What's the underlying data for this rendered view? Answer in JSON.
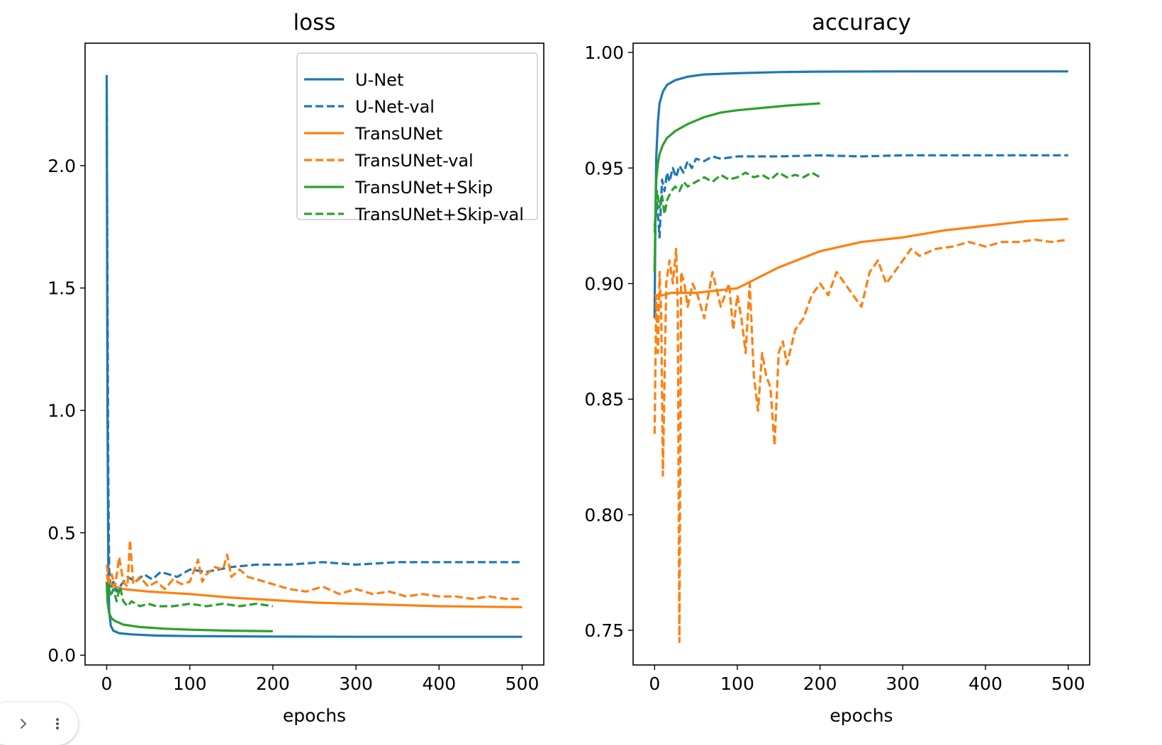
{
  "chart_data": [
    {
      "type": "line",
      "title": "loss",
      "xlabel": "epochs",
      "ylabel": "",
      "xlim": [
        -26,
        526
      ],
      "ylim": [
        -0.04,
        2.5
      ],
      "xticks": [
        0,
        100,
        200,
        300,
        400,
        500
      ],
      "xtick_labels": [
        "0",
        "100",
        "200",
        "300",
        "400",
        "500"
      ],
      "yticks": [
        0.0,
        0.5,
        1.0,
        1.5,
        2.0
      ],
      "ytick_labels": [
        "0.0",
        "0.5",
        "1.0",
        "1.5",
        "2.0"
      ],
      "legend": "top-right",
      "series": [
        {
          "name": "U-Net",
          "color": "#1f77b4",
          "style": "solid",
          "x": [
            0,
            1,
            2,
            3,
            5,
            8,
            15,
            30,
            60,
            100,
            200,
            300,
            400,
            500
          ],
          "y": [
            2.37,
            1.0,
            0.35,
            0.18,
            0.12,
            0.1,
            0.09,
            0.085,
            0.08,
            0.078,
            0.076,
            0.075,
            0.075,
            0.075
          ]
        },
        {
          "name": "U-Net-val",
          "color": "#1f77b4",
          "style": "dashed",
          "x": [
            0,
            1,
            2,
            3,
            5,
            8,
            12,
            18,
            25,
            35,
            45,
            55,
            65,
            75,
            85,
            100,
            120,
            150,
            180,
            220,
            260,
            300,
            350,
            400,
            450,
            500
          ],
          "y": [
            2.3,
            1.5,
            0.7,
            0.35,
            0.27,
            0.3,
            0.26,
            0.29,
            0.32,
            0.3,
            0.33,
            0.31,
            0.34,
            0.33,
            0.32,
            0.35,
            0.34,
            0.36,
            0.37,
            0.37,
            0.38,
            0.37,
            0.38,
            0.38,
            0.38,
            0.38
          ]
        },
        {
          "name": "TransUNet",
          "color": "#ff7f0e",
          "style": "solid",
          "x": [
            0,
            2,
            5,
            10,
            20,
            50,
            100,
            150,
            200,
            250,
            300,
            350,
            400,
            450,
            500
          ],
          "y": [
            0.33,
            0.3,
            0.29,
            0.28,
            0.27,
            0.26,
            0.25,
            0.235,
            0.225,
            0.215,
            0.21,
            0.205,
            0.2,
            0.198,
            0.196
          ]
        },
        {
          "name": "TransUNet-val",
          "color": "#ff7f0e",
          "style": "dashed",
          "x": [
            0,
            3,
            6,
            10,
            15,
            20,
            25,
            28,
            32,
            40,
            50,
            60,
            70,
            80,
            90,
            100,
            110,
            115,
            120,
            130,
            140,
            145,
            150,
            160,
            170,
            180,
            200,
            220,
            240,
            260,
            280,
            300,
            320,
            340,
            360,
            380,
            400,
            420,
            440,
            460,
            480,
            500
          ],
          "y": [
            0.37,
            0.3,
            0.33,
            0.28,
            0.4,
            0.3,
            0.28,
            0.47,
            0.29,
            0.32,
            0.28,
            0.3,
            0.27,
            0.31,
            0.29,
            0.3,
            0.39,
            0.3,
            0.33,
            0.36,
            0.35,
            0.41,
            0.32,
            0.35,
            0.32,
            0.31,
            0.29,
            0.27,
            0.26,
            0.28,
            0.25,
            0.27,
            0.25,
            0.26,
            0.24,
            0.25,
            0.24,
            0.24,
            0.23,
            0.24,
            0.23,
            0.23
          ]
        },
        {
          "name": "TransUNet+Skip",
          "color": "#2ca02c",
          "style": "solid",
          "x": [
            0,
            1,
            3,
            6,
            10,
            20,
            40,
            70,
            100,
            150,
            200
          ],
          "y": [
            0.3,
            0.22,
            0.17,
            0.15,
            0.14,
            0.125,
            0.115,
            0.108,
            0.104,
            0.1,
            0.098
          ]
        },
        {
          "name": "TransUNet+Skip-val",
          "color": "#2ca02c",
          "style": "dashed",
          "x": [
            0,
            2,
            5,
            8,
            12,
            16,
            20,
            25,
            30,
            40,
            50,
            60,
            80,
            100,
            120,
            140,
            160,
            180,
            200
          ],
          "y": [
            0.26,
            0.29,
            0.24,
            0.27,
            0.22,
            0.28,
            0.22,
            0.2,
            0.22,
            0.2,
            0.21,
            0.2,
            0.2,
            0.21,
            0.2,
            0.21,
            0.2,
            0.21,
            0.2
          ]
        }
      ]
    },
    {
      "type": "line",
      "title": "accuracy",
      "xlabel": "epochs",
      "ylabel": "",
      "xlim": [
        -26,
        526
      ],
      "ylim": [
        0.735,
        1.004
      ],
      "xticks": [
        0,
        100,
        200,
        300,
        400,
        500
      ],
      "xtick_labels": [
        "0",
        "100",
        "200",
        "300",
        "400",
        "500"
      ],
      "yticks": [
        0.75,
        0.8,
        0.85,
        0.9,
        0.95,
        1.0
      ],
      "ytick_labels": [
        "0.75",
        "0.80",
        "0.85",
        "0.90",
        "0.95",
        "1.00"
      ],
      "series": [
        {
          "name": "U-Net",
          "color": "#1f77b4",
          "style": "solid",
          "x": [
            0,
            1,
            2,
            4,
            6,
            10,
            15,
            25,
            40,
            60,
            100,
            150,
            200,
            300,
            400,
            500
          ],
          "y": [
            0.885,
            0.93,
            0.955,
            0.97,
            0.978,
            0.983,
            0.986,
            0.988,
            0.9895,
            0.9905,
            0.991,
            0.9915,
            0.9917,
            0.9918,
            0.9918,
            0.9918
          ]
        },
        {
          "name": "U-Net-val",
          "color": "#1f77b4",
          "style": "dashed",
          "x": [
            0,
            3,
            6,
            9,
            12,
            15,
            18,
            22,
            26,
            30,
            35,
            40,
            45,
            50,
            60,
            70,
            80,
            100,
            150,
            200,
            250,
            300,
            350,
            400,
            450,
            500
          ],
          "y": [
            0.925,
            0.935,
            0.92,
            0.945,
            0.94,
            0.948,
            0.944,
            0.95,
            0.946,
            0.951,
            0.948,
            0.953,
            0.95,
            0.954,
            0.953,
            0.955,
            0.954,
            0.955,
            0.955,
            0.9555,
            0.955,
            0.9555,
            0.9555,
            0.9555,
            0.9555,
            0.9555
          ]
        },
        {
          "name": "TransUNet",
          "color": "#ff7f0e",
          "style": "solid",
          "x": [
            0,
            2,
            5,
            10,
            20,
            50,
            100,
            150,
            200,
            250,
            300,
            350,
            400,
            450,
            500
          ],
          "y": [
            0.895,
            0.895,
            0.895,
            0.895,
            0.896,
            0.896,
            0.898,
            0.907,
            0.914,
            0.918,
            0.92,
            0.923,
            0.925,
            0.927,
            0.928
          ]
        },
        {
          "name": "TransUNet-val",
          "color": "#ff7f0e",
          "style": "dashed",
          "x": [
            0,
            2,
            4,
            6,
            8,
            10,
            14,
            18,
            22,
            26,
            28,
            30,
            32,
            36,
            40,
            46,
            52,
            60,
            70,
            80,
            90,
            95,
            100,
            105,
            110,
            115,
            120,
            125,
            130,
            135,
            140,
            145,
            150,
            155,
            160,
            170,
            180,
            190,
            200,
            210,
            220,
            230,
            240,
            250,
            260,
            270,
            280,
            290,
            300,
            310,
            320,
            340,
            360,
            380,
            400,
            420,
            440,
            460,
            480,
            500
          ],
          "y": [
            0.835,
            0.895,
            0.87,
            0.905,
            0.885,
            0.817,
            0.9,
            0.91,
            0.9,
            0.915,
            0.89,
            0.745,
            0.905,
            0.9,
            0.89,
            0.9,
            0.895,
            0.885,
            0.905,
            0.89,
            0.9,
            0.88,
            0.895,
            0.885,
            0.87,
            0.9,
            0.86,
            0.845,
            0.87,
            0.86,
            0.855,
            0.83,
            0.87,
            0.875,
            0.865,
            0.88,
            0.885,
            0.895,
            0.9,
            0.895,
            0.905,
            0.9,
            0.895,
            0.89,
            0.905,
            0.91,
            0.9,
            0.905,
            0.91,
            0.915,
            0.912,
            0.915,
            0.916,
            0.918,
            0.916,
            0.918,
            0.918,
            0.919,
            0.918,
            0.919
          ]
        },
        {
          "name": "TransUNet+Skip",
          "color": "#2ca02c",
          "style": "solid",
          "x": [
            0,
            1,
            2,
            4,
            6,
            10,
            15,
            25,
            40,
            60,
            80,
            100,
            130,
            160,
            200
          ],
          "y": [
            0.905,
            0.93,
            0.945,
            0.952,
            0.956,
            0.96,
            0.963,
            0.966,
            0.969,
            0.972,
            0.974,
            0.975,
            0.976,
            0.977,
            0.978
          ]
        },
        {
          "name": "TransUNet+Skip-val",
          "color": "#2ca02c",
          "style": "dashed",
          "x": [
            0,
            3,
            6,
            9,
            12,
            15,
            20,
            25,
            30,
            35,
            40,
            50,
            60,
            70,
            80,
            90,
            100,
            110,
            120,
            130,
            140,
            150,
            160,
            170,
            180,
            190,
            200
          ],
          "y": [
            0.922,
            0.94,
            0.933,
            0.938,
            0.93,
            0.936,
            0.94,
            0.942,
            0.94,
            0.944,
            0.942,
            0.944,
            0.946,
            0.944,
            0.947,
            0.945,
            0.946,
            0.948,
            0.946,
            0.947,
            0.945,
            0.948,
            0.946,
            0.947,
            0.946,
            0.948,
            0.946
          ]
        }
      ]
    }
  ],
  "toolbar": {
    "expand_glyph": "›",
    "more_glyph": "⋮"
  }
}
